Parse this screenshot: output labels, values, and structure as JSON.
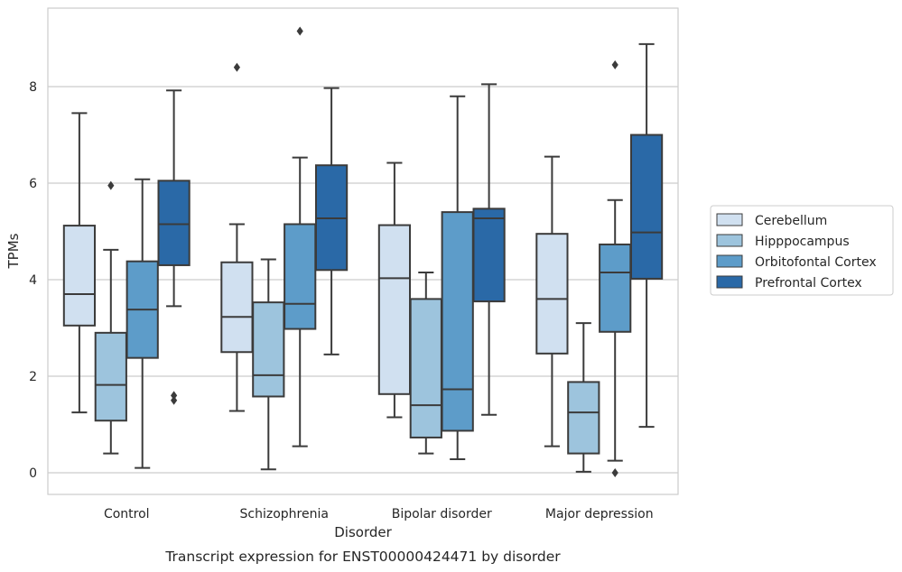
{
  "chart_data": {
    "type": "box",
    "title": "",
    "caption": "Transcript expression for ENST00000424471 by disorder",
    "xlabel": "Disorder",
    "ylabel": "TPMs",
    "ylim": [
      -0.4,
      9.8
    ],
    "yticks": [
      0,
      2,
      4,
      6,
      8
    ],
    "grid": "horizontal",
    "legend_placement": "right",
    "categories": [
      "Control",
      "Schizophrenia",
      "Bipolar disorder",
      "Major depression"
    ],
    "series": [
      {
        "name": "Cerebellum",
        "color": "#d0e0f0",
        "boxes": [
          {
            "whislo": 1.25,
            "q1": 3.05,
            "med": 3.7,
            "q3": 5.12,
            "whishi": 7.45,
            "fliers": []
          },
          {
            "whislo": 1.28,
            "q1": 2.5,
            "med": 3.23,
            "q3": 4.36,
            "whishi": 5.15,
            "fliers": [
              8.4
            ]
          },
          {
            "whislo": 1.15,
            "q1": 1.63,
            "med": 4.03,
            "q3": 5.13,
            "whishi": 6.42,
            "fliers": []
          },
          {
            "whislo": 0.55,
            "q1": 2.47,
            "med": 3.6,
            "q3": 4.95,
            "whishi": 6.55,
            "fliers": []
          }
        ]
      },
      {
        "name": "Hipppocampus",
        "color": "#9dc4dd",
        "boxes": [
          {
            "whislo": 0.4,
            "q1": 1.08,
            "med": 1.82,
            "q3": 2.9,
            "whishi": 4.62,
            "fliers": [
              5.95
            ]
          },
          {
            "whislo": 0.07,
            "q1": 1.58,
            "med": 2.02,
            "q3": 3.53,
            "whishi": 4.42,
            "fliers": []
          },
          {
            "whislo": 0.4,
            "q1": 0.73,
            "med": 1.4,
            "q3": 3.6,
            "whishi": 4.15,
            "fliers": []
          },
          {
            "whislo": 0.02,
            "q1": 0.4,
            "med": 1.25,
            "q3": 1.88,
            "whishi": 3.1,
            "fliers": []
          }
        ]
      },
      {
        "name": "Orbitofontal Cortex",
        "color": "#5d9cc9",
        "boxes": [
          {
            "whislo": 0.1,
            "q1": 2.38,
            "med": 3.38,
            "q3": 4.38,
            "whishi": 6.08,
            "fliers": []
          },
          {
            "whislo": 0.55,
            "q1": 2.98,
            "med": 3.5,
            "q3": 5.15,
            "whishi": 6.53,
            "fliers": [
              9.15
            ]
          },
          {
            "whislo": 0.28,
            "q1": 0.87,
            "med": 1.73,
            "q3": 5.4,
            "whishi": 7.8,
            "fliers": []
          },
          {
            "whislo": 0.25,
            "q1": 2.92,
            "med": 4.15,
            "q3": 4.73,
            "whishi": 5.65,
            "fliers": [
              0.0,
              8.45
            ]
          }
        ]
      },
      {
        "name": "Prefrontal Cortex",
        "color": "#2a69a7",
        "boxes": [
          {
            "whislo": 3.45,
            "q1": 4.3,
            "med": 5.15,
            "q3": 6.05,
            "whishi": 7.92,
            "fliers": [
              1.6,
              1.5
            ]
          },
          {
            "whislo": 2.45,
            "q1": 4.2,
            "med": 5.27,
            "q3": 6.37,
            "whishi": 7.97,
            "fliers": []
          },
          {
            "whislo": 1.2,
            "q1": 3.55,
            "med": 5.27,
            "q3": 5.47,
            "whishi": 8.05,
            "fliers": []
          },
          {
            "whislo": 0.95,
            "q1": 4.02,
            "med": 4.98,
            "q3": 7.0,
            "whishi": 8.88,
            "fliers": []
          }
        ]
      }
    ]
  }
}
